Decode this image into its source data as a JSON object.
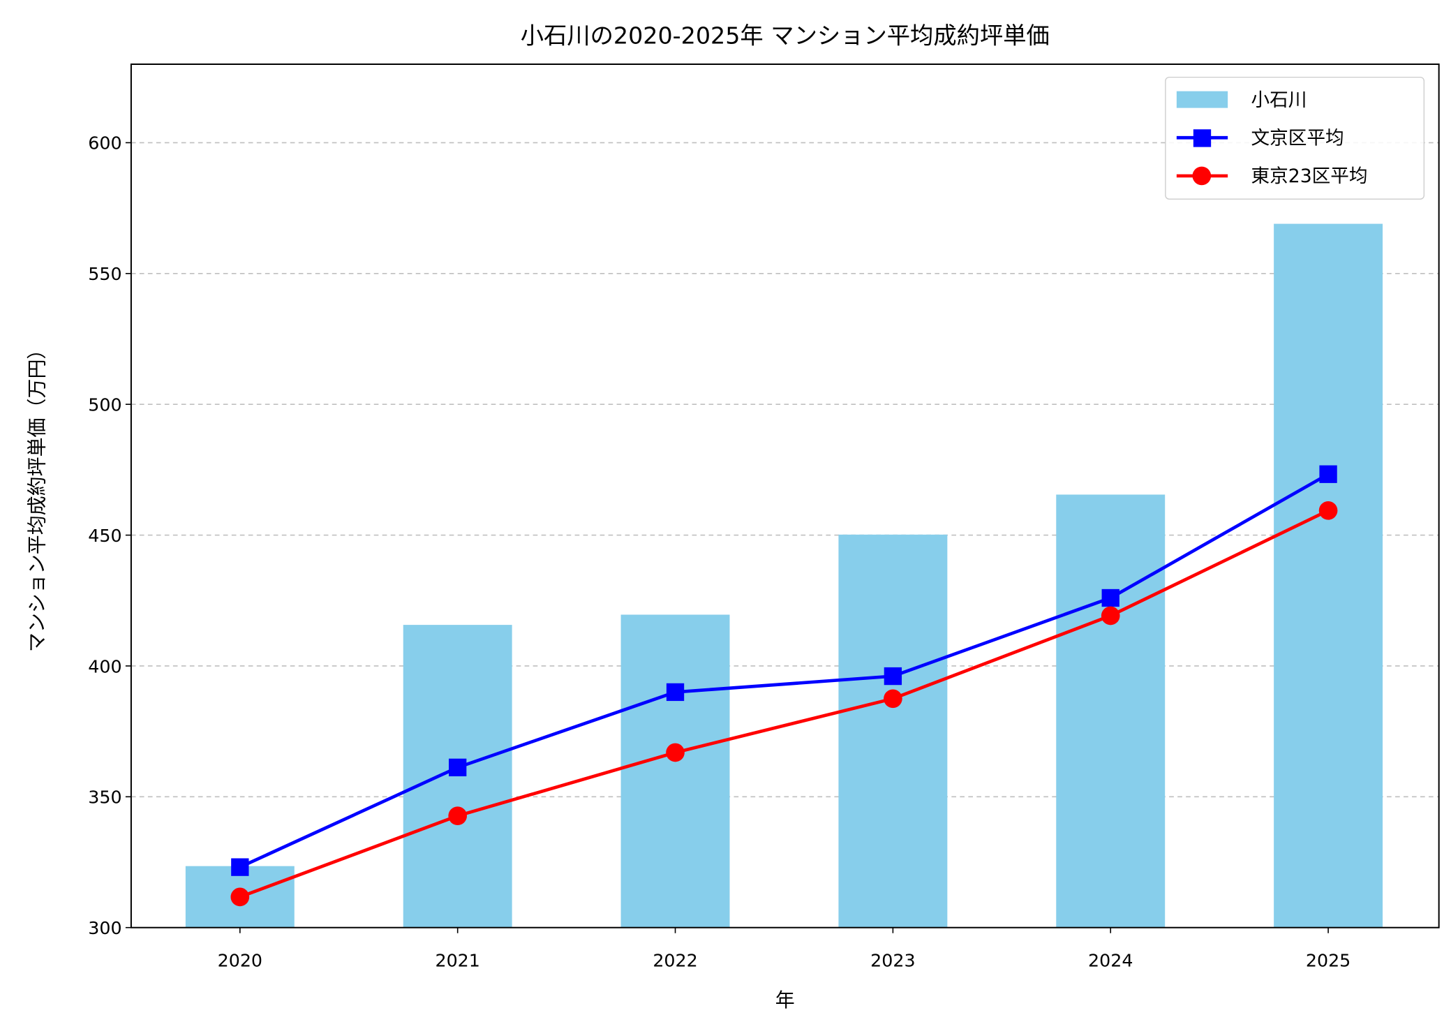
{
  "chart_data": {
    "type": "bar+line",
    "title": "小石川の2020-2025年 マンション平均成約坪単価",
    "xlabel": "年",
    "ylabel": "マンション平均成約坪単価（万円）",
    "categories": [
      "2020",
      "2021",
      "2022",
      "2023",
      "2024",
      "2025"
    ],
    "ylim": [
      300,
      630
    ],
    "yticks": [
      300,
      350,
      400,
      450,
      500,
      550,
      600
    ],
    "grid": "y dashed",
    "legend": "top-right",
    "series": [
      {
        "name": "小石川",
        "kind": "bar",
        "color": "#87ceeb",
        "values": [
          323.5,
          415.7,
          419.6,
          450.2,
          465.5,
          569.0
        ]
      },
      {
        "name": "文京区平均",
        "kind": "line",
        "marker": "square",
        "color": "#0000ff",
        "values": [
          323.1,
          361.2,
          390.0,
          396.1,
          426.0,
          473.3
        ]
      },
      {
        "name": "東京23区平均",
        "kind": "line",
        "marker": "circle",
        "color": "#ff0000",
        "values": [
          311.7,
          342.7,
          366.9,
          387.5,
          419.2,
          459.4
        ]
      }
    ]
  }
}
